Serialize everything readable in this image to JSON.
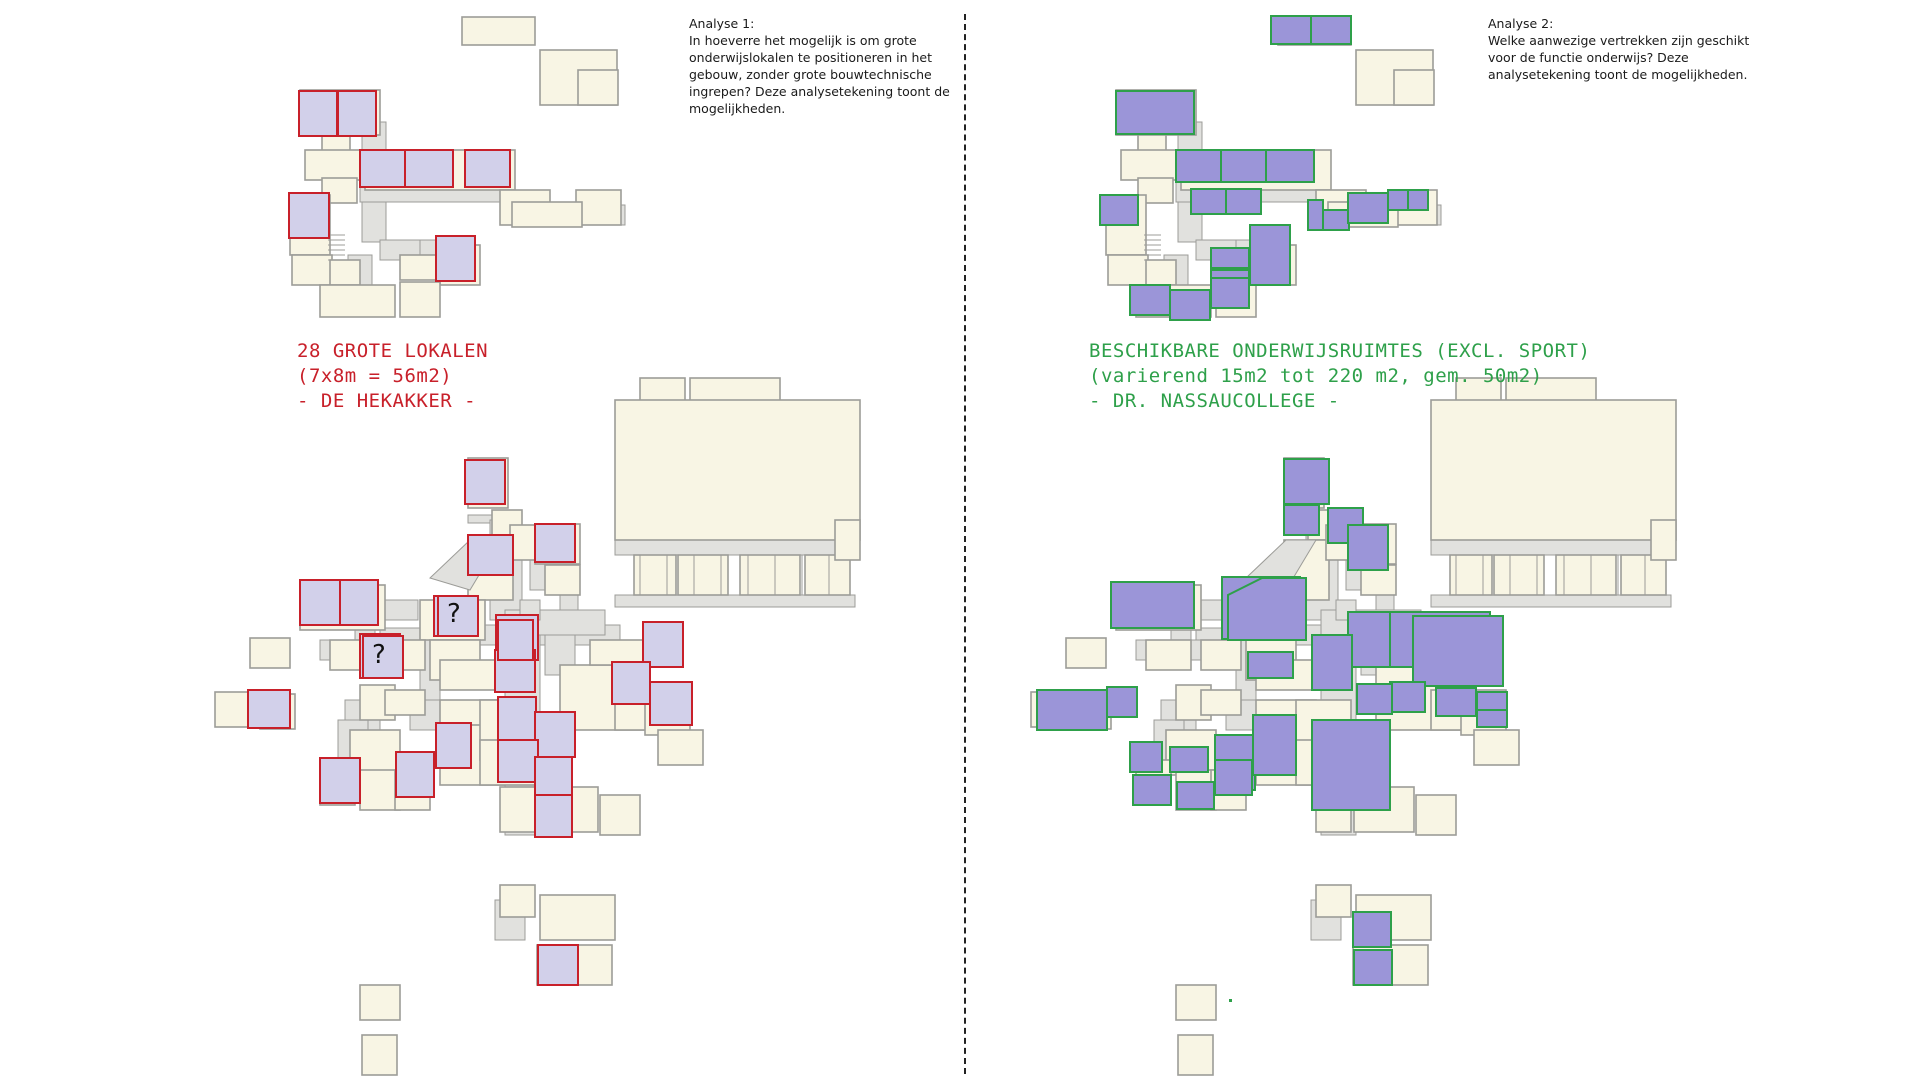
{
  "analysis1": {
    "title": "Analyse 1:",
    "text": "In hoeverre het mogelijk is om grote onderwijslokalen te positioneren in het gebouw, zonder grote bouwtechnische ingrepen? Deze analysetekening toont de mogelijkheden."
  },
  "analysis2": {
    "title": "Analyse 2:",
    "text": "Welke aanwezige vertrekken zijn geschikt voor de functie onderwijs? Deze analysetekening toont de mogelijkheden."
  },
  "left_heading": {
    "line1": "28 GROTE LOKALEN",
    "line2": "(7x8m = 56m2)",
    "line3": "- DE HEKAKKER -"
  },
  "right_heading": {
    "line1": "BESCHIKBARE ONDERWIJSRUIMTES (EXCL. SPORT)",
    "line2": "(varierend 15m2 tot 220 m2, gem. 50m2)",
    "line3": "- DR. NASSAUCOLLEGE -"
  },
  "question_marks": [
    "?",
    "?"
  ],
  "colors": {
    "room_fill": "#f8f5e4",
    "corridor_fill": "#e1e1de",
    "wall": "#9c9c98",
    "classroom_fill": "#d2d0ea",
    "classroom_stroke": "#c8202a",
    "space_fill": "#9b95d8",
    "space_stroke": "#2ea04a",
    "divider": "#222222"
  }
}
